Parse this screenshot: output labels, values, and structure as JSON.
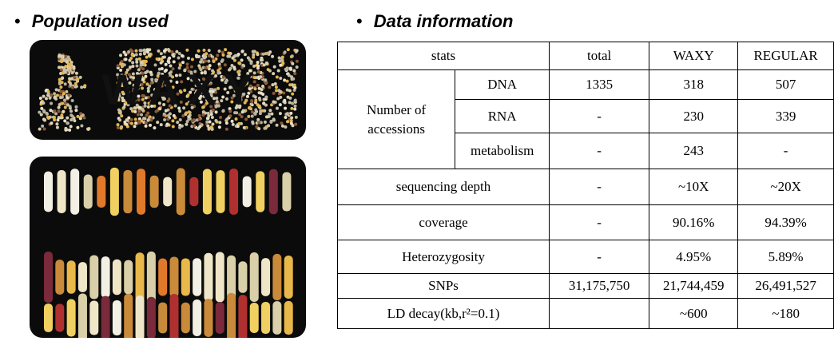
{
  "left": {
    "heading": "Population used",
    "photo_text": "WAXY"
  },
  "right": {
    "heading": "Data information",
    "table": {
      "header": [
        "stats",
        "total",
        "WAXY",
        "REGULAR"
      ],
      "group_label": "Number of accessions",
      "group_rows": [
        [
          "DNA",
          "1335",
          "318",
          "507"
        ],
        [
          "RNA",
          "-",
          "230",
          "339"
        ],
        [
          "metabolism",
          "-",
          "243",
          "-"
        ]
      ],
      "rows": [
        [
          "sequencing depth",
          "-",
          "~10X",
          "~20X"
        ],
        [
          "coverage",
          "-",
          "90.16%",
          "94.39%"
        ],
        [
          "Heterozygosity",
          "-",
          "4.95%",
          "5.89%"
        ],
        [
          "SNPs",
          "31,175,750",
          "21,744,459",
          "26,491,527"
        ],
        [
          "LD decay(kb,r²=0.1)",
          null,
          "~600",
          "~180"
        ]
      ]
    }
  }
}
